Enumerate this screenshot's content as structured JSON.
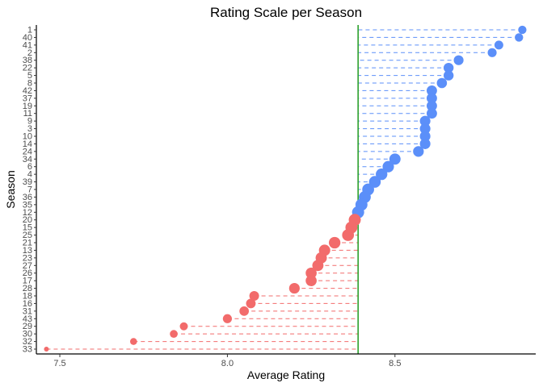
{
  "chart_data": {
    "type": "scatter",
    "title": "Rating Scale per Season",
    "xlabel": "Average Rating",
    "ylabel": "Season",
    "xlim": [
      7.43,
      8.92
    ],
    "xticks": [
      "7.5",
      "8.0",
      "8.5"
    ],
    "reference_line": {
      "x": 8.39,
      "color": "#2ca02c"
    },
    "colors": {
      "above": "#5b8ff9",
      "below": "#f26b6b"
    },
    "grid": false,
    "legend": "none",
    "points": [
      {
        "season": "1",
        "rating": 8.88
      },
      {
        "season": "40",
        "rating": 8.87
      },
      {
        "season": "41",
        "rating": 8.81
      },
      {
        "season": "2",
        "rating": 8.79
      },
      {
        "season": "38",
        "rating": 8.69
      },
      {
        "season": "22",
        "rating": 8.66
      },
      {
        "season": "5",
        "rating": 8.66
      },
      {
        "season": "8",
        "rating": 8.64
      },
      {
        "season": "42",
        "rating": 8.61
      },
      {
        "season": "37",
        "rating": 8.61
      },
      {
        "season": "19",
        "rating": 8.61
      },
      {
        "season": "11",
        "rating": 8.61
      },
      {
        "season": "9",
        "rating": 8.59
      },
      {
        "season": "3",
        "rating": 8.59
      },
      {
        "season": "10",
        "rating": 8.59
      },
      {
        "season": "14",
        "rating": 8.59
      },
      {
        "season": "24",
        "rating": 8.57
      },
      {
        "season": "34",
        "rating": 8.5
      },
      {
        "season": "6",
        "rating": 8.48
      },
      {
        "season": "4",
        "rating": 8.46
      },
      {
        "season": "39",
        "rating": 8.44
      },
      {
        "season": "7",
        "rating": 8.42
      },
      {
        "season": "36",
        "rating": 8.41
      },
      {
        "season": "35",
        "rating": 8.4
      },
      {
        "season": "12",
        "rating": 8.39
      },
      {
        "season": "20",
        "rating": 8.38
      },
      {
        "season": "15",
        "rating": 8.37
      },
      {
        "season": "25",
        "rating": 8.36
      },
      {
        "season": "21",
        "rating": 8.32
      },
      {
        "season": "13",
        "rating": 8.29
      },
      {
        "season": "23",
        "rating": 8.28
      },
      {
        "season": "27",
        "rating": 8.27
      },
      {
        "season": "26",
        "rating": 8.25
      },
      {
        "season": "17",
        "rating": 8.25
      },
      {
        "season": "28",
        "rating": 8.2
      },
      {
        "season": "18",
        "rating": 8.08
      },
      {
        "season": "16",
        "rating": 8.07
      },
      {
        "season": "31",
        "rating": 8.05
      },
      {
        "season": "43",
        "rating": 8.0
      },
      {
        "season": "29",
        "rating": 7.87
      },
      {
        "season": "30",
        "rating": 7.84
      },
      {
        "season": "32",
        "rating": 7.72
      },
      {
        "season": "33",
        "rating": 7.46
      }
    ]
  }
}
